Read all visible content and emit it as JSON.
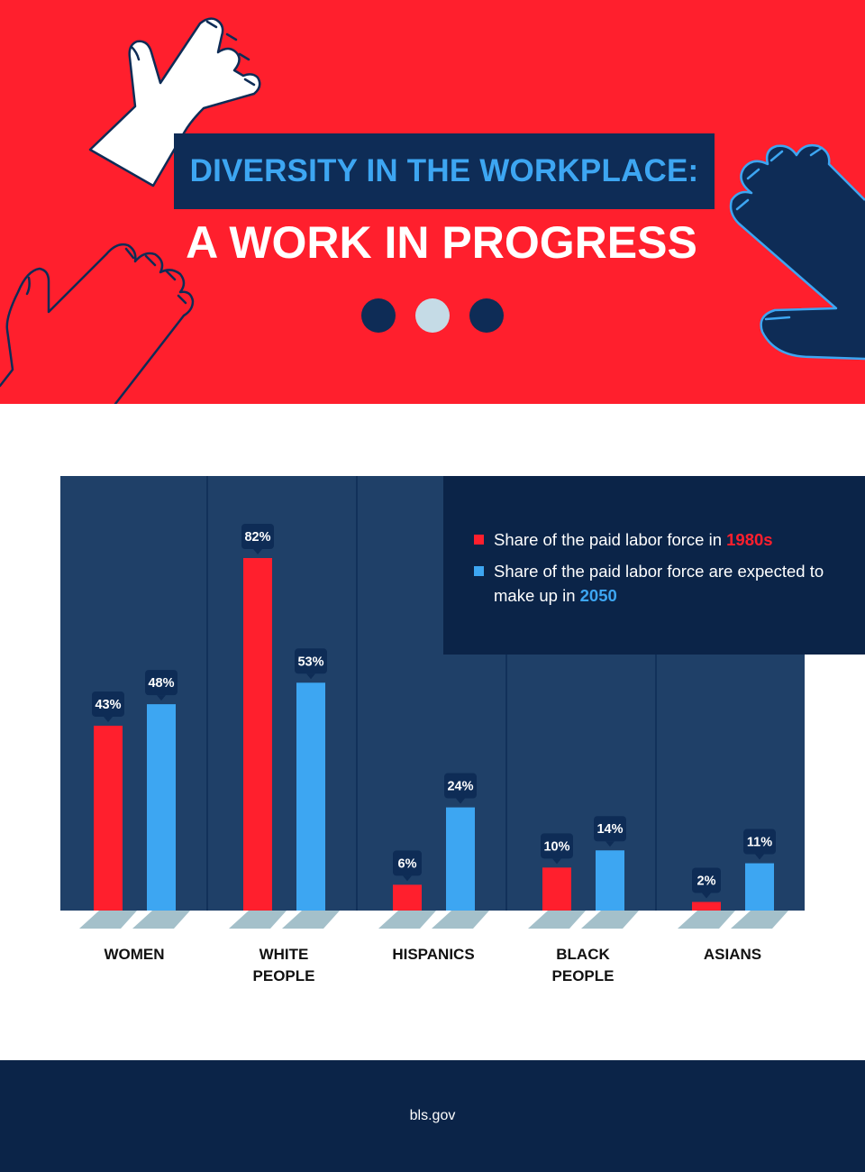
{
  "header": {
    "title_line1": "DIVERSITY IN THE WORKPLACE:",
    "title_line2": "A WORK IN PROGRESS"
  },
  "icons": [
    "hand-outline-icon-white",
    "hand-outline-icon-red",
    "hand-filled-icon-navy"
  ],
  "colors": {
    "header_bg": "#ff1f2d",
    "navy": "#0e2c56",
    "plot_bg": "#1f4068",
    "series_1980s": "#ff1f2d",
    "series_2050": "#3da6f2",
    "base_shadow": "#a4c0ca"
  },
  "legend": {
    "item1_prefix": "Share of the paid labor force in ",
    "item1_highlight": "1980s",
    "item2_prefix": "Share of the paid labor force are expected to make up in ",
    "item2_highlight": "2050"
  },
  "chart_data": {
    "type": "bar",
    "categories": [
      [
        "WOMEN"
      ],
      [
        "WHITE",
        "PEOPLE"
      ],
      [
        "HISPANICS"
      ],
      [
        "BLACK",
        "PEOPLE"
      ],
      [
        "ASIANS"
      ]
    ],
    "series": [
      {
        "name": "Share of the paid labor force in 1980s",
        "values": [
          43,
          82,
          6,
          10,
          2
        ],
        "labels": [
          "43%",
          "82%",
          "6%",
          "10%",
          "2%"
        ]
      },
      {
        "name": "Share of the paid labor force are expected to make up in 2050",
        "values": [
          48,
          53,
          24,
          14,
          11
        ],
        "labels": [
          "48%",
          "53%",
          "24%",
          "14%",
          "11%"
        ]
      }
    ],
    "ylim": [
      0,
      100
    ],
    "unit": "%",
    "legend_position": "top-right",
    "grid": false
  },
  "footer": {
    "source": "bls.gov"
  }
}
